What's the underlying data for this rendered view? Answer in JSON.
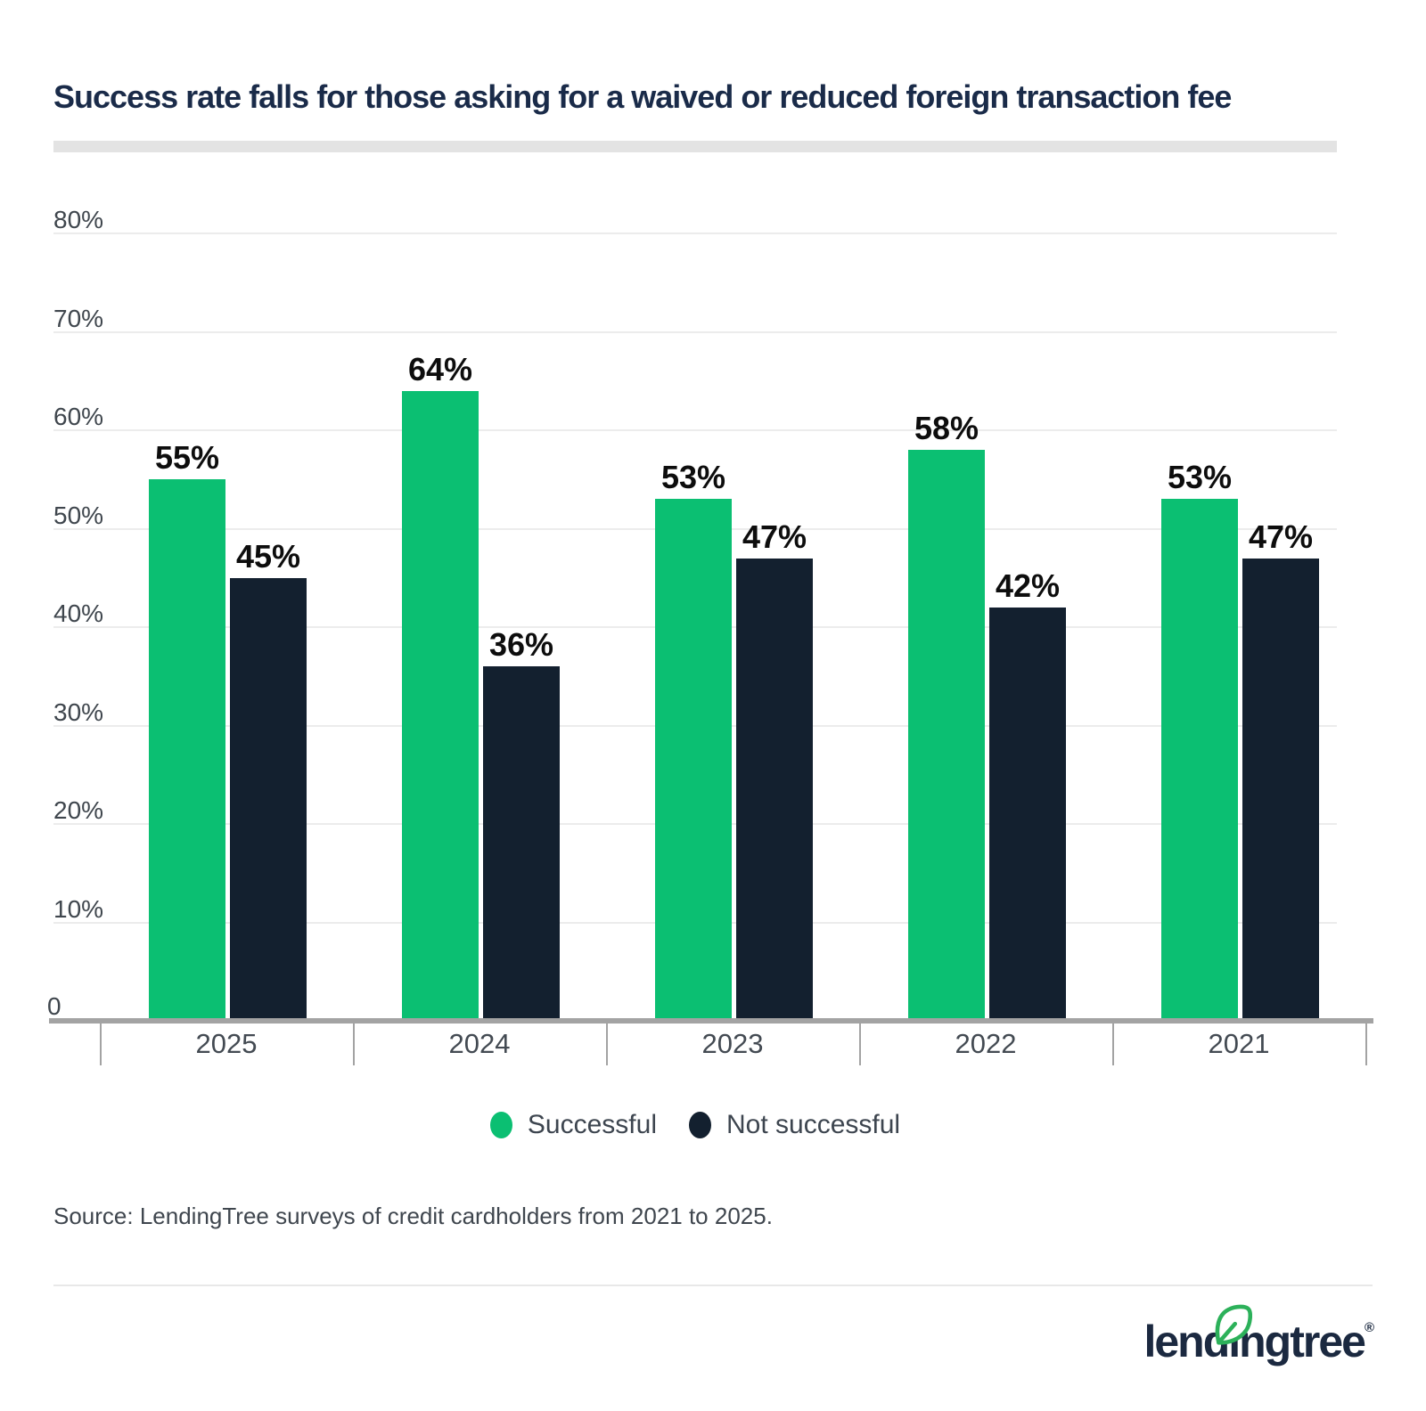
{
  "title": "Success rate falls for those asking for a waived or reduced foreign transaction fee",
  "chart_data": {
    "type": "bar",
    "categories": [
      "2025",
      "2024",
      "2023",
      "2022",
      "2021"
    ],
    "series": [
      {
        "name": "Successful",
        "color": "#0bbf72",
        "values": [
          55,
          64,
          53,
          58,
          53
        ]
      },
      {
        "name": "Not successful",
        "color": "#13202f",
        "values": [
          45,
          36,
          47,
          42,
          47
        ]
      }
    ],
    "value_suffix": "%",
    "ylim": [
      0,
      80
    ],
    "yticks": [
      80,
      70,
      60,
      50,
      40,
      30,
      20,
      10
    ],
    "ytick_suffix": "%",
    "zero_label": "0",
    "grid": true,
    "legend_position": "bottom-center",
    "bar_labels_shown": true
  },
  "legend_note": "legend is rendered from chart_data.series",
  "source": "Source: LendingTree surveys of credit cardholders from 2021 to 2025.",
  "logo": {
    "text": "lendingtree",
    "registered_mark": "®",
    "leaf_color": "#2cb15a",
    "wordmark_color": "#1b2940"
  }
}
